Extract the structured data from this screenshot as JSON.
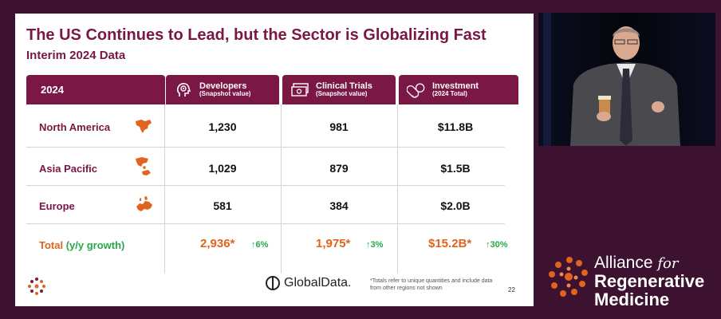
{
  "slide": {
    "title": "The US Continues to Lead, but the Sector is Globalizing Fast",
    "subtitle": "Interim 2024 Data",
    "page_number": "22"
  },
  "table": {
    "year_header": "2024",
    "columns": [
      {
        "label": "Developers",
        "sub": "(Snapshot value)",
        "icon": "head-gear-icon"
      },
      {
        "label": "Clinical Trials",
        "sub": "(Snapshot value)",
        "icon": "money-icon"
      },
      {
        "label": "Investment",
        "sub": "(2024 Total)",
        "icon": "pill-icon"
      }
    ],
    "rows": [
      {
        "region": "North America",
        "icon": "north-america-map-icon",
        "values": [
          "1,230",
          "981",
          "$11.8B"
        ]
      },
      {
        "region": "Asia Pacific",
        "icon": "asia-pacific-map-icon",
        "values": [
          "1,029",
          "879",
          "$1.5B"
        ]
      },
      {
        "region": "Europe",
        "icon": "europe-map-icon",
        "values": [
          "581",
          "384",
          "$2.0B"
        ]
      }
    ],
    "total": {
      "label": "Total",
      "growth_label": "(y/y growth)",
      "values": [
        "2,936*",
        "1,975*",
        "$15.2B*"
      ],
      "growth": [
        "↑6%",
        "↑3%",
        "↑30%"
      ]
    }
  },
  "footer": {
    "brand": "GlobalData.",
    "footnote": "*Totals refer to unique quantities and include data from other regions not shown"
  },
  "sponsor": {
    "line1": "Alliance",
    "line1_for": "for",
    "line2": "Regenerative",
    "line3": "Medicine"
  },
  "colors": {
    "brand": "#7a1744",
    "accent": "#e0631f",
    "growth": "#27a84a",
    "background": "#3d1230"
  }
}
